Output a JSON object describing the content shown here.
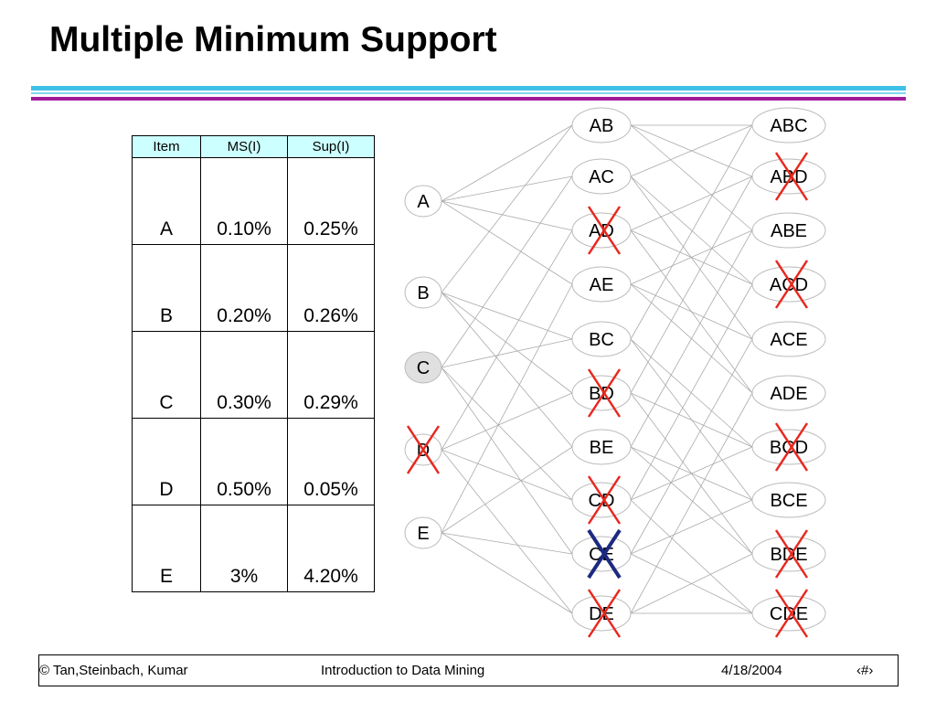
{
  "title": "Multiple Minimum Support",
  "table": {
    "headers": [
      "Item",
      "MS(I)",
      "Sup(I)"
    ],
    "rows": [
      [
        "A",
        "0.10%",
        "0.25%"
      ],
      [
        "B",
        "0.20%",
        "0.26%"
      ],
      [
        "C",
        "0.30%",
        "0.29%"
      ],
      [
        "D",
        "0.50%",
        "0.05%"
      ],
      [
        "E",
        "3%",
        "4.20%"
      ]
    ]
  },
  "lattice": {
    "level1": [
      {
        "label": "A",
        "pruned": false
      },
      {
        "label": "B",
        "pruned": false
      },
      {
        "label": "C",
        "pruned": false,
        "highlight": true
      },
      {
        "label": "D",
        "pruned": true
      },
      {
        "label": "E",
        "pruned": false
      }
    ],
    "level2": [
      {
        "label": "AB",
        "pruned": false
      },
      {
        "label": "AC",
        "pruned": false
      },
      {
        "label": "AD",
        "pruned": true
      },
      {
        "label": "AE",
        "pruned": false
      },
      {
        "label": "BC",
        "pruned": false
      },
      {
        "label": "BD",
        "pruned": true
      },
      {
        "label": "BE",
        "pruned": false
      },
      {
        "label": "CD",
        "pruned": true
      },
      {
        "label": "CE",
        "pruned": true,
        "mark": "blue"
      },
      {
        "label": "DE",
        "pruned": true
      }
    ],
    "level3": [
      {
        "label": "ABC",
        "pruned": false
      },
      {
        "label": "ABD",
        "pruned": true
      },
      {
        "label": "ABE",
        "pruned": false
      },
      {
        "label": "ACD",
        "pruned": true
      },
      {
        "label": "ACE",
        "pruned": false
      },
      {
        "label": "ADE",
        "pruned": false
      },
      {
        "label": "BCD",
        "pruned": true
      },
      {
        "label": "BCE",
        "pruned": false
      },
      {
        "label": "BDE",
        "pruned": true
      },
      {
        "label": "CDE",
        "pruned": true
      }
    ],
    "colors": {
      "node_fill": "#ffffff",
      "node_highlight_fill": "#e0e0e0",
      "node_stroke": "#bbbbbb",
      "edge": "#aaaaaa",
      "cross_red": "#e8281e",
      "cross_blue": "#1c2a80"
    }
  },
  "footer": {
    "copyright": "© Tan,Steinbach, Kumar",
    "course": "Introduction to Data Mining",
    "date": "4/18/2004",
    "page": "‹#›"
  }
}
